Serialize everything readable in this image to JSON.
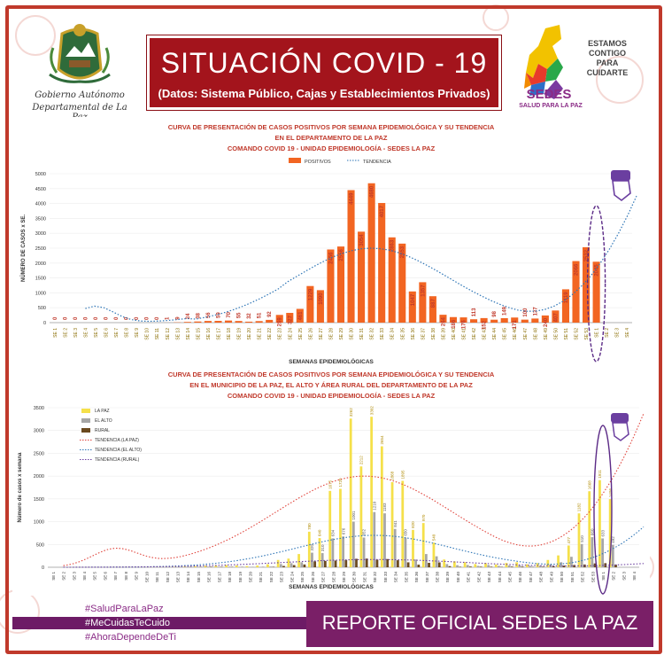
{
  "header": {
    "title": "SITUACIÓN  COVID - 19",
    "subtitle": "(Datos: Sistema Público, Cajas y Establecimientos Privados)",
    "logo_left_line1": "Gobierno Autónomo",
    "logo_left_line2": "Departamental de La Paz",
    "logo_right_line1": "ESTAMOS",
    "logo_right_line2": "CONTIGO",
    "logo_right_line3": "PARA",
    "logo_right_line4": "CUIDARTE",
    "logo_right_brand": "SEDES",
    "logo_right_tagline": "SALUD PARA LA PAZ"
  },
  "colors": {
    "frame": "#c0392b",
    "title_box": "#a3141c",
    "bar_orange": "#f26522",
    "bar_yellow": "#f5e04a",
    "bar_gray": "#a6a6a6",
    "bar_brown": "#6b4a1f",
    "trend_blue": "#2e75b6",
    "trend_red": "#e0433b",
    "trend_purple": "#6b3fa0",
    "report_bar": "#7a1f67"
  },
  "chart_data": [
    {
      "type": "bar",
      "title": "CURVA DE PRESENTACIÓN DE CASOS POSITIVOS POR SEMANA EPIDEMIOLÓGICA Y SU TENDENCIA",
      "subtitle": "EN EL DEPARTAMENTO DE LA PAZ",
      "subtitle2": "COMANDO COVID 19 - UNIDAD EPIDEMIOLOGÍA - SEDES LA PAZ",
      "xlabel": "SEMANAS EPIDEMIOLÓGICAS",
      "ylabel": "NÚMERO DE CASOS x SE.",
      "ylim": [
        0,
        5000
      ],
      "yticks": [
        "0",
        "500",
        "1000",
        "1500",
        "2000",
        "2500",
        "3000",
        "3500",
        "4000",
        "4500",
        "5000"
      ],
      "legend": [
        "POSITIVOS",
        "TENDENCIA"
      ],
      "legend_position": "top-center",
      "categories": [
        "SE 1",
        "SE 2",
        "SE 3",
        "SE 4",
        "SE 5",
        "SE 6",
        "SE 7",
        "SE 8",
        "SE 9",
        "SE 10",
        "SE 11",
        "SE 12",
        "SE 13",
        "SE 14",
        "SE 15",
        "SE 16",
        "SE 17",
        "SE 18",
        "SE 19",
        "SE 20",
        "SE 21",
        "SE 22",
        "SE 23",
        "SE 24",
        "SE 25",
        "SE 26",
        "SE 27",
        "SE 28",
        "SE 29",
        "SE 30",
        "SE 31",
        "SE 32",
        "SE 33",
        "SE 34",
        "SE 35",
        "SE 36",
        "SE 37",
        "SE 38",
        "SE 39",
        "SE 40",
        "SE 41",
        "SE 42",
        "SE 43",
        "SE 44",
        "SE 45",
        "SE 46",
        "SE 47",
        "SE 48",
        "SE 49",
        "SE 50",
        "SE 51",
        "SE 52",
        "SE 53",
        "SE 1",
        "SE 2",
        "SE 3",
        "SE 4"
      ],
      "values": [
        0,
        0,
        0,
        0,
        0,
        0,
        0,
        0,
        0,
        0,
        0,
        1,
        9,
        24,
        38,
        56,
        59,
        70,
        55,
        32,
        51,
        92,
        259,
        327,
        461,
        1229,
        1090,
        2456,
        2556,
        4449,
        3054,
        4680,
        4017,
        2863,
        2653,
        1047,
        1357,
        887,
        264,
        186,
        176,
        113,
        152,
        98,
        149,
        171,
        100,
        137,
        240,
        407,
        1119,
        2066,
        2532,
        2045,
        null,
        null,
        null
      ],
      "labels": [
        "0",
        "0",
        "0",
        "0",
        "0",
        "0",
        "0",
        "0",
        "0",
        "0",
        "0",
        "1",
        "9",
        "24",
        "38",
        "56",
        "59",
        "70",
        "55",
        "32",
        "51",
        "92",
        "259",
        "327",
        "461",
        "1229",
        "1090",
        "2456",
        "2556",
        "4449",
        "3054",
        "4680",
        "4017",
        "2863",
        "2653",
        "1047",
        "1357",
        "887",
        "264",
        "186",
        "176",
        "113",
        "152",
        "98",
        "149",
        "171",
        "100",
        "137",
        "240",
        "407",
        "1119",
        "2066",
        "2532",
        "2045",
        "",
        "",
        ""
      ]
    },
    {
      "type": "bar",
      "title": "CURVA DE PRESENTACIÓN DE CASOS POSITIVOS POR SEMANA EPIDEMIOLÓGICA Y SU TENDENCIA",
      "subtitle": "EN EL  MUNICIPIO DE LA PAZ, EL ALTO Y ÁREA RURAL DEL DEPARTAMENTO DE LA PAZ",
      "subtitle2": "COMANDO COVID 19 - UNIDAD EPIDEMIOLOGÍA - SEDES LA PAZ",
      "xlabel": "SEMANAS EPIDEMIOLÓGICAS",
      "ylabel": "Número de casos x semana",
      "ylim": [
        0,
        3500
      ],
      "yticks": [
        "0",
        "500",
        "1000",
        "1500",
        "2000",
        "2500",
        "3000",
        "3500"
      ],
      "legend": [
        "LA PAZ",
        "EL ALTO",
        "RURAL",
        "TENDENCIA (LA PAZ)",
        "TENDENCIA (EL ALTO)",
        "TENDENCIA (RURAL)"
      ],
      "legend_position": "top-left",
      "categories": [
        "SE 1",
        "SE 2",
        "SE 3",
        "SE 4",
        "SE 5",
        "SE 6",
        "SE 7",
        "SE 8",
        "SE 9",
        "SE 10",
        "SE 11",
        "SE 12",
        "SE 13",
        "SE 14",
        "SE 15",
        "SE 16",
        "SE 17",
        "SE 18",
        "SE 19",
        "SE 20",
        "SE 21",
        "SE 22",
        "SE 23",
        "SE 24",
        "SE 25",
        "SE 26",
        "SE 27",
        "SE 28",
        "SE 29",
        "SE 30",
        "SE 31",
        "SE 32",
        "SE 33",
        "SE 34",
        "SE 35",
        "SE 36",
        "SE 37",
        "SE 38",
        "SE 39",
        "SE 40",
        "SE 41",
        "SE 42",
        "SE 43",
        "SE 44",
        "SE 45",
        "SE 46",
        "SE 47",
        "SE 48",
        "SE 49",
        "SE 50",
        "SE 51",
        "SE 52",
        "SE 53",
        "SE 1",
        "SE 2",
        "SE 3",
        "SE 4"
      ],
      "series": [
        {
          "name": "LA PAZ",
          "values": [
            0,
            0,
            0,
            0,
            0,
            0,
            0,
            0,
            0,
            0,
            0,
            1,
            6,
            15,
            24,
            34,
            38,
            48,
            40,
            25,
            38,
            66,
            160,
            190,
            290,
            780,
            640,
            1675,
            1720,
            3262,
            2212,
            3302,
            2654,
            1868,
            1895,
            820,
            970,
            540,
            170,
            130,
            110,
            70,
            90,
            60,
            95,
            110,
            65,
            90,
            160,
            260,
            477,
            1182,
            1668,
            1911,
            1496,
            null,
            null
          ]
        },
        {
          "name": "EL ALTO",
          "values": [
            0,
            0,
            0,
            0,
            0,
            0,
            0,
            0,
            0,
            0,
            0,
            0,
            2,
            5,
            8,
            12,
            12,
            14,
            10,
            5,
            8,
            16,
            70,
            90,
            110,
            320,
            310,
            634,
            676,
            1001,
            652,
            1210,
            1183,
            841,
            650,
            170,
            290,
            240,
            70,
            45,
            50,
            30,
            50,
            30,
            40,
            45,
            28,
            35,
            60,
            110,
            230,
            510,
            660,
            633,
            492,
            null,
            null
          ]
        },
        {
          "name": "RURAL",
          "values": [
            0,
            0,
            0,
            0,
            0,
            0,
            0,
            0,
            0,
            0,
            0,
            0,
            1,
            4,
            6,
            10,
            9,
            8,
            5,
            2,
            5,
            10,
            29,
            47,
            61,
            129,
            140,
            147,
            160,
            186,
            190,
            168,
            180,
            154,
            108,
            57,
            97,
            107,
            24,
            11,
            16,
            13,
            12,
            8,
            14,
            16,
            7,
            12,
            20,
            37,
            50,
            60,
            84,
            90,
            57,
            null,
            null
          ]
        }
      ]
    }
  ],
  "footer": {
    "report": "REPORTE OFICIAL SEDES LA PAZ",
    "hashtags": [
      "#SaludParaLaPaz",
      "#MeCuidasTeCuido",
      "#AhoraDependeDeTi"
    ]
  }
}
